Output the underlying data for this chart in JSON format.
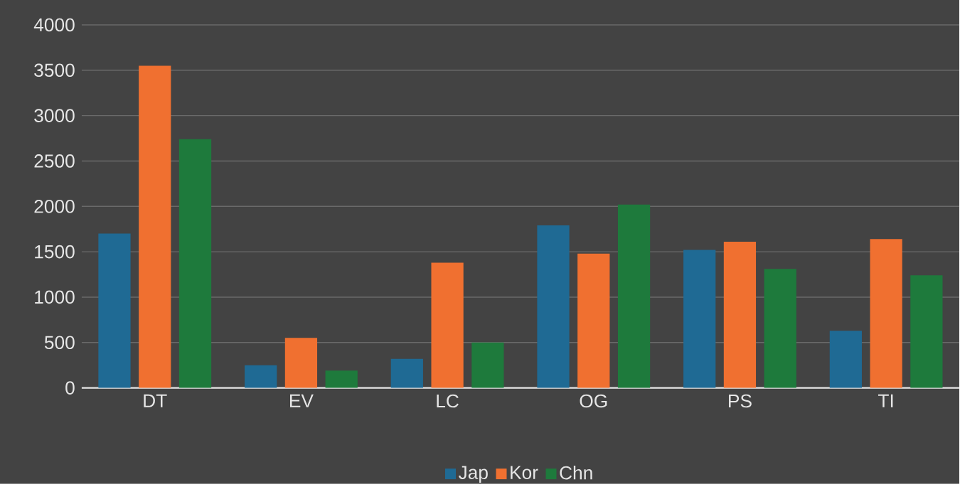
{
  "chart_data": {
    "type": "bar",
    "categories": [
      "DT",
      "EV",
      "LC",
      "OG",
      "PS",
      "TI"
    ],
    "series": [
      {
        "name": "Jap",
        "color": "#1f6a94",
        "values": [
          1700,
          250,
          320,
          1790,
          1520,
          630
        ]
      },
      {
        "name": "Kor",
        "color": "#f07030",
        "values": [
          3550,
          550,
          1380,
          1480,
          1610,
          1640
        ]
      },
      {
        "name": "Chn",
        "color": "#1e7a3c",
        "values": [
          2740,
          190,
          500,
          2020,
          1310,
          1240
        ]
      }
    ],
    "ylim": [
      0,
      4000
    ],
    "yticks": [
      0,
      500,
      1000,
      1500,
      2000,
      2500,
      3000,
      3500,
      4000
    ],
    "grid": "y",
    "legend": "bottom"
  }
}
